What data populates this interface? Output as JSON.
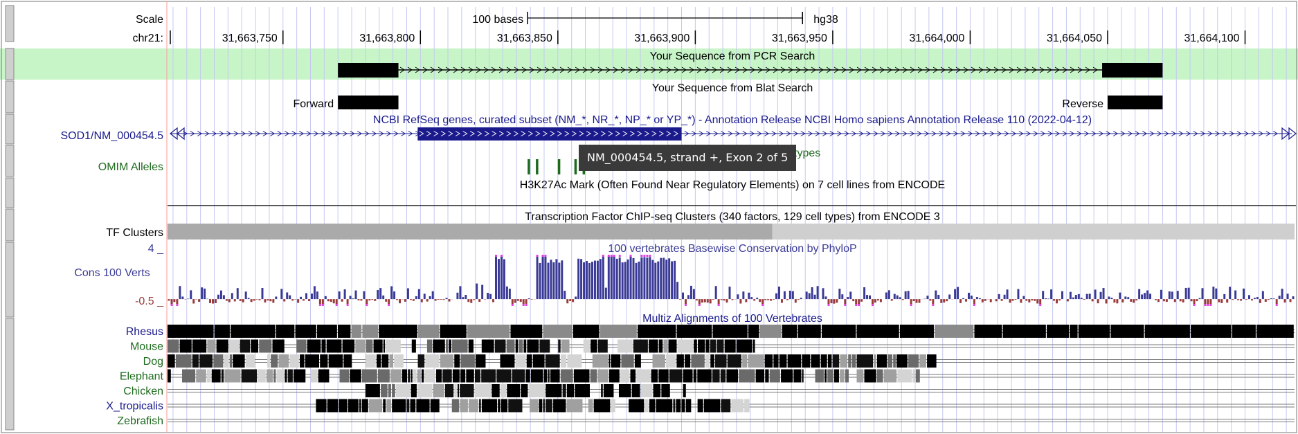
{
  "assembly": "hg38",
  "chromosome": "chr21:",
  "scale": {
    "row_label": "Scale",
    "bar_label": "100 bases",
    "length_bases": 100
  },
  "view": {
    "start": 31663708,
    "end": 31664118
  },
  "ruler_ticks": [
    {
      "pos": 31663750,
      "label": "31,663,750"
    },
    {
      "pos": 31663800,
      "label": "31,663,800"
    },
    {
      "pos": 31663850,
      "label": "31,663,850"
    },
    {
      "pos": 31663900,
      "label": "31,663,900"
    },
    {
      "pos": 31663950,
      "label": "31,663,950"
    },
    {
      "pos": 31664000,
      "label": "31,664,000"
    },
    {
      "pos": 31664050,
      "label": "31,664,050"
    },
    {
      "pos": 31664100,
      "label": "31,664,100"
    }
  ],
  "tracks": {
    "pcr": {
      "title": "Your Sequence from PCR Search",
      "bg_color": "#c8f5c8",
      "start": 31663770,
      "end": 31664070,
      "block_len": 22
    },
    "blat": {
      "title": "Your Sequence from Blat Search",
      "forward": {
        "label": "Forward",
        "start": 31663770,
        "end": 31663792
      },
      "reverse": {
        "label": "Reverse",
        "start": 31664050,
        "end": 31664070
      }
    },
    "refseq": {
      "title": "NCBI RefSeq genes, curated subset (NM_*, NR_*, NP_* or YP_*) - Annotation Release NCBI Homo sapiens Annotation Release 110 (2022-04-12)",
      "gene_label": "SOD1/NM_000454.5",
      "exon_start": 31663799,
      "exon_end": 31663895,
      "color": "#1a1a8c"
    },
    "omim": {
      "label": "OMIM Alleles",
      "title_fragment": "types",
      "color": "#1e6b1e",
      "allele_positions": [
        31663839,
        31663842,
        31663850,
        31663856,
        31663859
      ]
    },
    "h3k27ac": {
      "title": "H3K27Ac Mark (Often Found Near Regulatory Elements) on 7 cell lines from ENCODE"
    },
    "tf": {
      "label": "TF Clusters",
      "title": "Transcription Factor ChIP-seq Clusters (340 factors, 129 cell types) from ENCODE 3",
      "dark_start": 31663708,
      "dark_end": 31663928,
      "light_start": 31663928,
      "light_end": 31664118
    },
    "cons": {
      "label": "Cons 100 Verts",
      "title": "100 vertebrates Basewise Conservation by PhyloP",
      "ymax_label": "4 _",
      "ymin_label": "-0.5 _",
      "ymax": 4,
      "ymin": -0.5,
      "pos_color": "#3a3a96",
      "neg_color": "#9a3a3a",
      "sat_color": "#e040e0"
    },
    "multiz": {
      "title": "Multiz Alignments of 100 Vertebrates",
      "species": [
        {
          "name": "Rhesus",
          "color": "#1a1a8c",
          "aligned_start": 31663708,
          "aligned_end": 31664118
        },
        {
          "name": "Mouse",
          "color": "#1e6b1e",
          "aligned_start": 31663708,
          "aligned_end": 31663922
        },
        {
          "name": "Dog",
          "color": "#1e6b1e",
          "aligned_start": 31663708,
          "aligned_end": 31663988
        },
        {
          "name": "Elephant",
          "color": "#1e6b1e",
          "aligned_start": 31663708,
          "aligned_end": 31663982
        },
        {
          "name": "Chicken",
          "color": "#1e6b1e",
          "aligned_start": 31663780,
          "aligned_end": 31663900
        },
        {
          "name": "X_tropicalis",
          "color": "#1a1a8c",
          "aligned_start": 31663762,
          "aligned_end": 31663920
        },
        {
          "name": "Zebrafish",
          "color": "#1e6b1e",
          "aligned_start": 0,
          "aligned_end": 0
        }
      ]
    }
  },
  "tooltip": "NM_000454.5, strand +, Exon 2 of 5"
}
